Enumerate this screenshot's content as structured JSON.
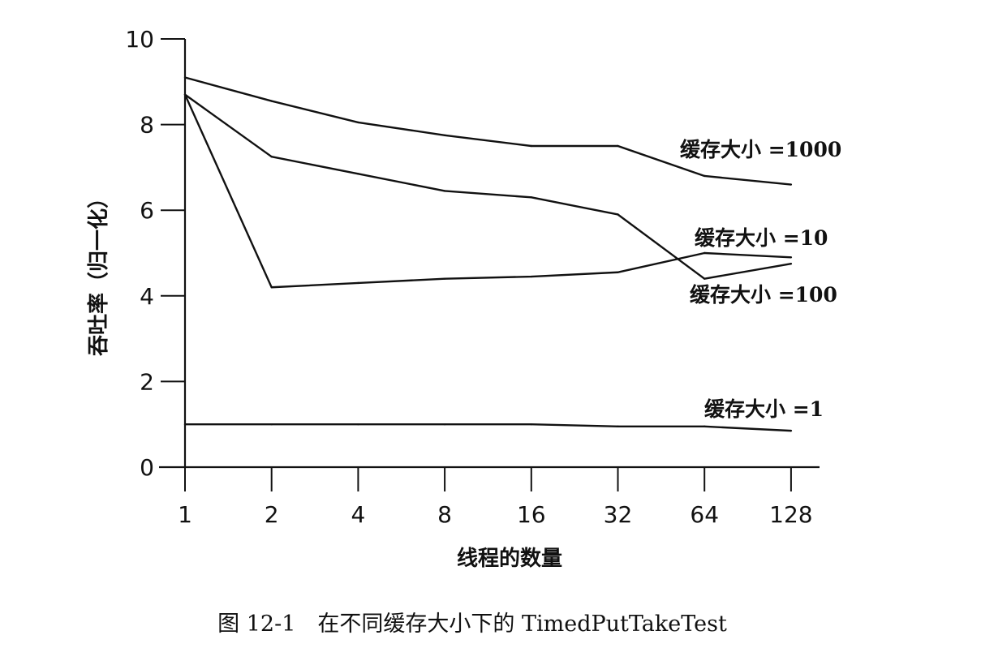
{
  "chart_data": {
    "type": "line",
    "xlabel": "线程的数量",
    "ylabel": "吞吐率（归一化）",
    "x": [
      1,
      2,
      4,
      8,
      16,
      32,
      64,
      128
    ],
    "x_tick_labels": [
      "1",
      "2",
      "4",
      "8",
      "16",
      "32",
      "64",
      "128"
    ],
    "x_scale": "log2",
    "y_ticks": [
      "0",
      "2",
      "4",
      "6",
      "8",
      "10"
    ],
    "ylim": [
      0,
      10
    ],
    "grid": false,
    "series": [
      {
        "name": "缓存大小 =1000",
        "values": [
          9.1,
          8.55,
          8.05,
          7.75,
          7.5,
          7.5,
          6.8,
          6.6
        ]
      },
      {
        "name": "缓存大小 =10",
        "values": [
          8.7,
          7.25,
          6.85,
          6.45,
          6.3,
          5.9,
          4.4,
          4.75
        ]
      },
      {
        "name": "缓存大小 =100",
        "values": [
          8.7,
          4.2,
          4.3,
          4.4,
          4.45,
          4.55,
          5.0,
          4.9
        ]
      },
      {
        "name": "缓存大小 =1",
        "values": [
          1.0,
          1.0,
          1.0,
          1.0,
          1.0,
          0.95,
          0.95,
          0.85
        ]
      }
    ]
  },
  "caption": "图 12-1　在不同缓存大小下的 TimedPutTakeTest"
}
